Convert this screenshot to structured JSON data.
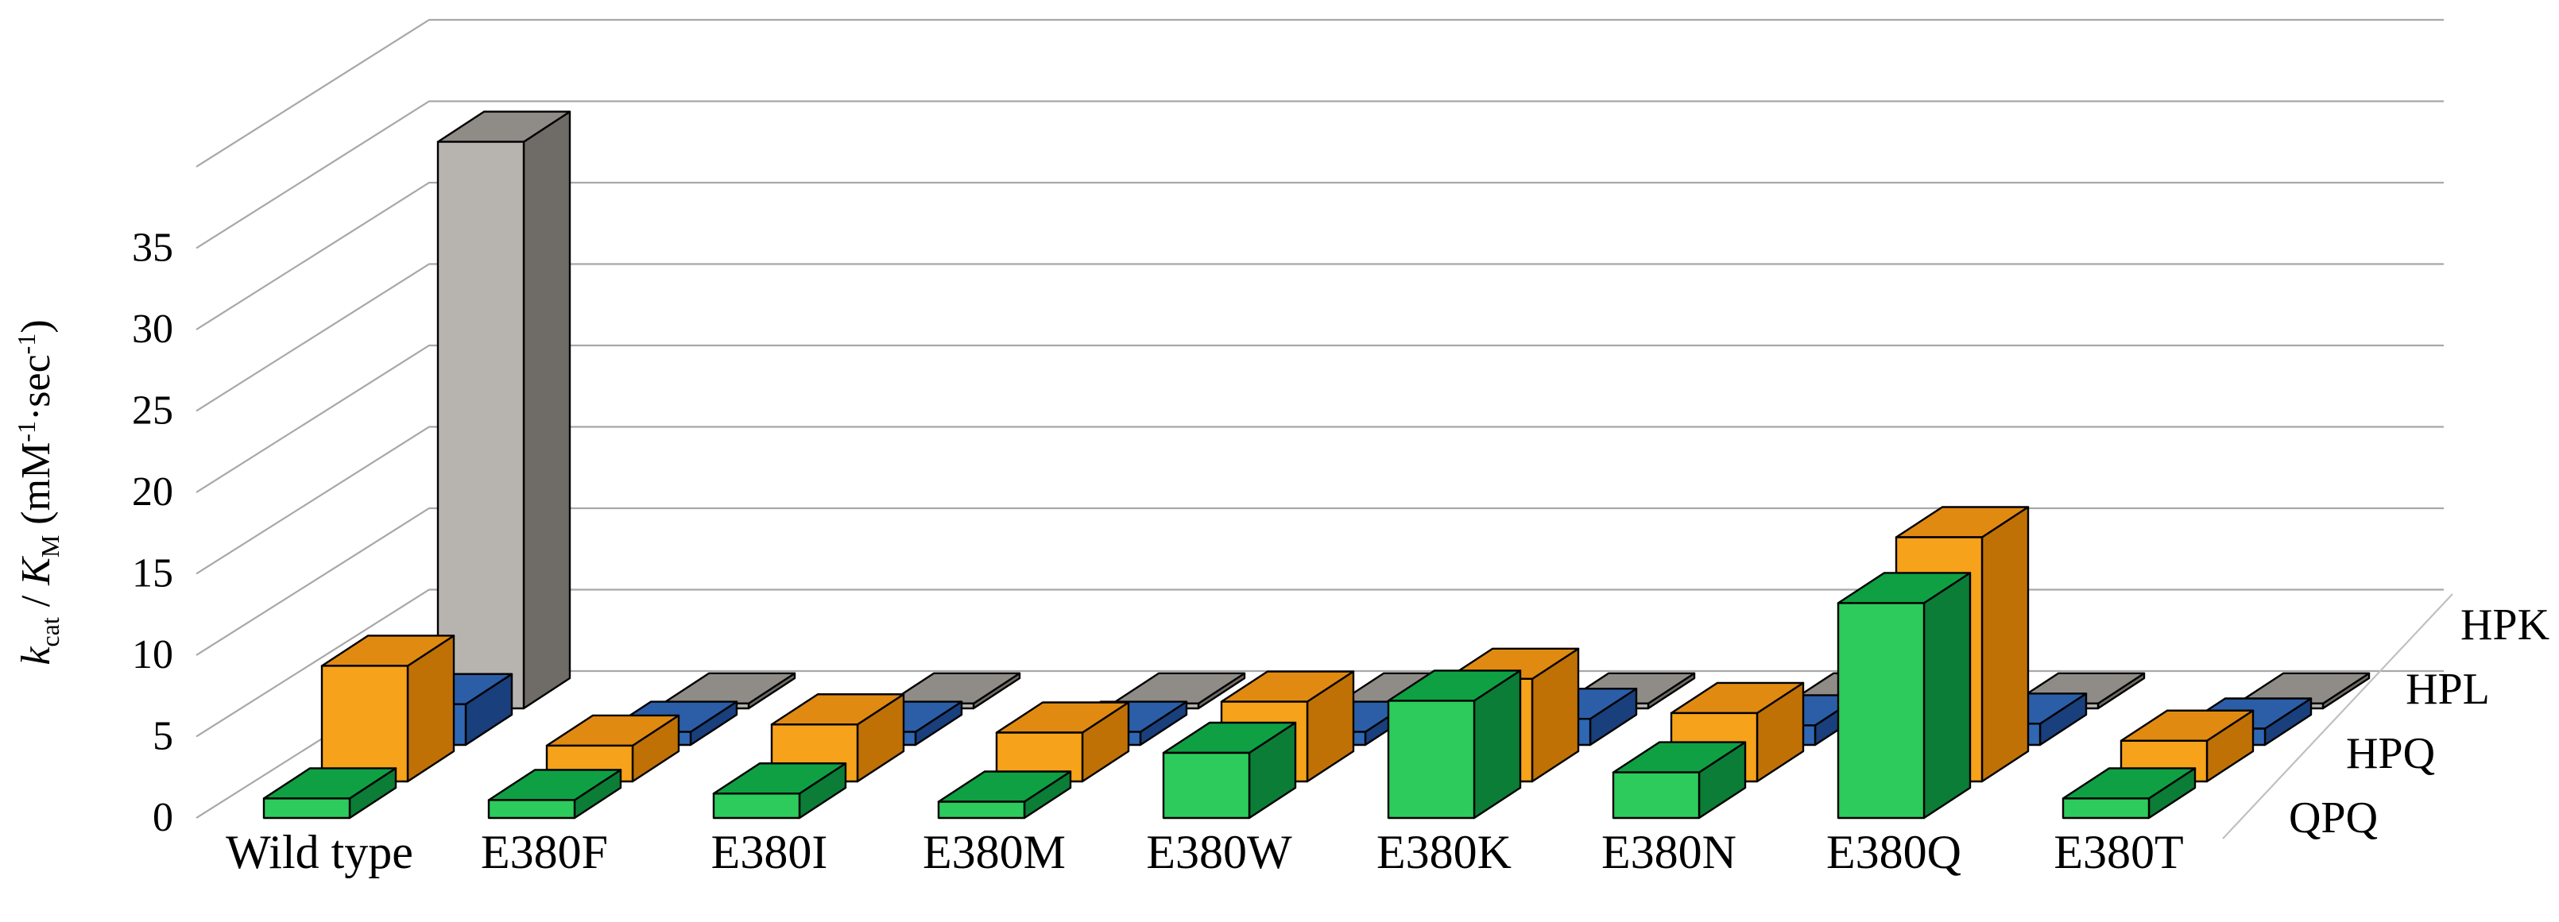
{
  "page": {
    "background": "#ffffff"
  },
  "chart_data": {
    "type": "bar",
    "projection": "3d-oblique",
    "title": "",
    "ylabel": "kcat / KM (mM-1·sec-1)",
    "ylabel_rich": [
      {
        "t": "k",
        "style": "italic"
      },
      {
        "t": "cat",
        "script": "sub"
      },
      {
        "t": " / ",
        "style": "normal"
      },
      {
        "t": "K",
        "style": "italic"
      },
      {
        "t": "M",
        "script": "sub"
      },
      {
        "t": " (mM",
        "style": "normal"
      },
      {
        "t": "-1",
        "script": "sup"
      },
      {
        "t": "·sec",
        "style": "normal"
      },
      {
        "t": "-1",
        "script": "sup"
      },
      {
        "t": ")",
        "style": "normal"
      }
    ],
    "ylim": [
      0,
      35
    ],
    "ytick_step": 5,
    "yticks": [
      0,
      5,
      10,
      15,
      20,
      25,
      30,
      35
    ],
    "grid": true,
    "gridline_color": "#A8A8A8",
    "outline_color": "#000000",
    "categories": [
      "Wild type",
      "E380F",
      "E380I",
      "E380M",
      "E380W",
      "E380K",
      "E380N",
      "E380Q",
      "E380T"
    ],
    "series": [
      {
        "name": "QPQ",
        "depth_row": 0,
        "color_front": "#2CCB5C",
        "color_top": "#0FA044",
        "color_side": "#0B7D36",
        "values": [
          1.2,
          1.1,
          1.5,
          1.0,
          4.0,
          7.2,
          2.8,
          13.2,
          1.2
        ]
      },
      {
        "name": "HPQ",
        "depth_row": 1,
        "color_front": "#F6A21A",
        "color_top": "#E18A12",
        "color_side": "#C07106",
        "values": [
          7.1,
          2.2,
          3.5,
          3.0,
          4.9,
          6.3,
          4.2,
          15.0,
          2.5
        ]
      },
      {
        "name": "HPL",
        "depth_row": 2,
        "color_front": "#2F67B3",
        "color_top": "#2B5EA7",
        "color_side": "#193F7C",
        "values": [
          2.5,
          0.8,
          0.8,
          0.8,
          0.8,
          1.6,
          1.2,
          1.3,
          1.0
        ]
      },
      {
        "name": "HPK",
        "depth_row": 3,
        "color_front": "#B7B4B0",
        "color_top": "#8F8C87",
        "color_side": "#6F6C67",
        "values": [
          34.8,
          0.3,
          0.3,
          0.3,
          0.3,
          0.3,
          0.3,
          0.3,
          0.3
        ]
      }
    ],
    "series_labels_top_to_bottom": [
      "HPK",
      "HPL",
      "HPQ",
      "QPQ"
    ],
    "legend_position": "right"
  }
}
